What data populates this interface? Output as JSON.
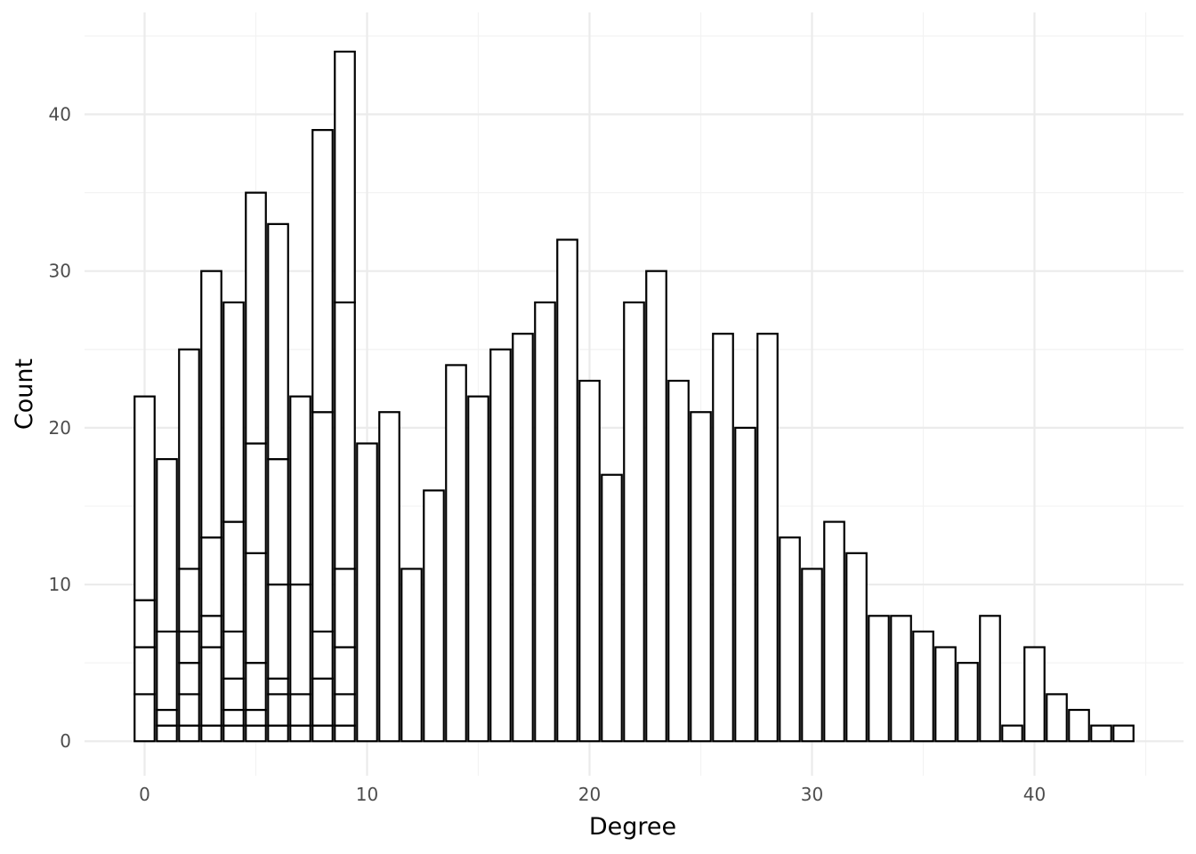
{
  "chart_data": {
    "type": "bar",
    "subtype": "stacked-histogram",
    "title": "",
    "xlabel": "Degree",
    "ylabel": "Count",
    "xlim": [
      -2.7,
      46.7
    ],
    "ylim": [
      -2.2,
      46.5
    ],
    "x_ticks": [
      0,
      10,
      20,
      30,
      40
    ],
    "y_ticks": [
      0,
      10,
      20,
      30,
      40
    ],
    "grid": true,
    "bar_fill": "#ffffff",
    "bar_outline": "#000000",
    "background": "#ffffff",
    "grid_color": "#ebebeb",
    "bins": [
      {
        "x": 0,
        "total": 22,
        "stack": [
          3,
          6,
          9
        ]
      },
      {
        "x": 1,
        "total": 18,
        "stack": [
          1,
          2,
          7
        ]
      },
      {
        "x": 2,
        "total": 25,
        "stack": [
          1,
          3,
          5,
          7,
          11
        ]
      },
      {
        "x": 3,
        "total": 30,
        "stack": [
          1,
          6,
          8,
          13
        ]
      },
      {
        "x": 4,
        "total": 28,
        "stack": [
          1,
          2,
          4,
          7,
          14
        ]
      },
      {
        "x": 5,
        "total": 35,
        "stack": [
          1,
          2,
          5,
          12,
          19
        ]
      },
      {
        "x": 6,
        "total": 33,
        "stack": [
          1,
          3,
          4,
          10,
          18
        ]
      },
      {
        "x": 7,
        "total": 22,
        "stack": [
          1,
          3,
          10
        ]
      },
      {
        "x": 8,
        "total": 39,
        "stack": [
          1,
          4,
          7,
          21
        ]
      },
      {
        "x": 9,
        "total": 44,
        "stack": [
          1,
          3,
          6,
          11,
          28
        ]
      },
      {
        "x": 10,
        "total": 19,
        "stack": []
      },
      {
        "x": 11,
        "total": 21,
        "stack": []
      },
      {
        "x": 12,
        "total": 11,
        "stack": []
      },
      {
        "x": 13,
        "total": 16,
        "stack": []
      },
      {
        "x": 14,
        "total": 24,
        "stack": []
      },
      {
        "x": 15,
        "total": 22,
        "stack": []
      },
      {
        "x": 16,
        "total": 25,
        "stack": []
      },
      {
        "x": 17,
        "total": 26,
        "stack": []
      },
      {
        "x": 18,
        "total": 28,
        "stack": []
      },
      {
        "x": 19,
        "total": 32,
        "stack": []
      },
      {
        "x": 20,
        "total": 23,
        "stack": []
      },
      {
        "x": 21,
        "total": 17,
        "stack": []
      },
      {
        "x": 22,
        "total": 28,
        "stack": []
      },
      {
        "x": 23,
        "total": 30,
        "stack": []
      },
      {
        "x": 24,
        "total": 23,
        "stack": []
      },
      {
        "x": 25,
        "total": 21,
        "stack": []
      },
      {
        "x": 26,
        "total": 26,
        "stack": []
      },
      {
        "x": 27,
        "total": 20,
        "stack": []
      },
      {
        "x": 28,
        "total": 26,
        "stack": []
      },
      {
        "x": 29,
        "total": 13,
        "stack": []
      },
      {
        "x": 30,
        "total": 11,
        "stack": []
      },
      {
        "x": 31,
        "total": 14,
        "stack": []
      },
      {
        "x": 32,
        "total": 12,
        "stack": []
      },
      {
        "x": 33,
        "total": 8,
        "stack": []
      },
      {
        "x": 34,
        "total": 8,
        "stack": []
      },
      {
        "x": 35,
        "total": 7,
        "stack": []
      },
      {
        "x": 36,
        "total": 6,
        "stack": []
      },
      {
        "x": 37,
        "total": 5,
        "stack": []
      },
      {
        "x": 38,
        "total": 8,
        "stack": []
      },
      {
        "x": 39,
        "total": 1,
        "stack": []
      },
      {
        "x": 40,
        "total": 6,
        "stack": []
      },
      {
        "x": 41,
        "total": 3,
        "stack": []
      },
      {
        "x": 42,
        "total": 2,
        "stack": []
      },
      {
        "x": 43,
        "total": 1,
        "stack": []
      },
      {
        "x": 44,
        "total": 1,
        "stack": []
      }
    ]
  }
}
